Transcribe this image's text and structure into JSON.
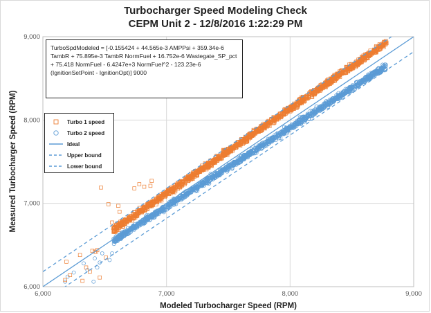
{
  "chart_data": {
    "type": "scatter",
    "title_line1": "Turbocharger Speed Modeling Check",
    "title_line2": "CEPM Unit 2 - 12/8/2016 1:22:29 PM",
    "xlabel": "Modeled Turbocharger Speed (RPM)",
    "ylabel": "Measured Turbocharger Speed (RPM)",
    "xlim": [
      6000,
      9000
    ],
    "ylim": [
      6000,
      9000
    ],
    "x_ticks": [
      "6,000",
      "7,000",
      "8,000",
      "9,000"
    ],
    "y_ticks": [
      "6,000",
      "7,000",
      "8,000",
      "9,000"
    ],
    "grid": true,
    "equation_text": "TurboSpdModeled = [-0.155424 + 44.565e-3 AMPPsi + 359.34e-6 TambR + 75.895e-3 TambR NormFuel + 16.752e-6 Wastegate_SP_pct + 75.418 NormFuel - 6.4247e+3 NormFuel^2 - 123.23e-6 (IgnitionSetPoint - IgnitionOpt)] 9000",
    "legend_placement": "left",
    "series": [
      {
        "name": "Turbo 1 speed",
        "marker": "square",
        "color": "#ED7D31",
        "band": {
          "x_start": 6570,
          "x_end": 8780,
          "offset_start": 110,
          "offset_end": 150
        },
        "outliers": [
          [
            6190,
            6300
          ],
          [
            6220,
            6140
          ],
          [
            6300,
            6380
          ],
          [
            6350,
            6230
          ],
          [
            6400,
            6430
          ],
          [
            6420,
            6420
          ],
          [
            6440,
            6440
          ],
          [
            6430,
            6420
          ],
          [
            6180,
            6080
          ],
          [
            6320,
            6070
          ],
          [
            6380,
            6180
          ],
          [
            6460,
            6110
          ],
          [
            6510,
            6350
          ],
          [
            6470,
            7190
          ],
          [
            6530,
            6990
          ],
          [
            6560,
            6770
          ],
          [
            6610,
            6970
          ],
          [
            6740,
            7180
          ],
          [
            6870,
            7210
          ],
          [
            6780,
            7230
          ],
          [
            6880,
            7270
          ],
          [
            6620,
            6900
          ],
          [
            6820,
            7200
          ]
        ]
      },
      {
        "name": "Turbo 2 speed",
        "marker": "circle",
        "color": "#5B9BD5",
        "band": {
          "x_start": 6570,
          "x_end": 8780,
          "offset_start": -20,
          "offset_end": -130
        },
        "outliers": [
          [
            6180,
            6060
          ],
          [
            6250,
            6170
          ],
          [
            6330,
            6280
          ],
          [
            6360,
            6200
          ],
          [
            6420,
            6340
          ],
          [
            6440,
            6230
          ],
          [
            6460,
            6290
          ],
          [
            6480,
            6400
          ],
          [
            6200,
            6120
          ],
          [
            6410,
            6060
          ],
          [
            6540,
            6320
          ],
          [
            6560,
            6400
          ]
        ]
      },
      {
        "name": "Ideal",
        "type": "line",
        "style": "solid",
        "color": "#5B9BD5",
        "points": [
          [
            6000,
            6000
          ],
          [
            9000,
            9000
          ]
        ]
      },
      {
        "name": "Upper bound",
        "type": "line",
        "style": "dashed",
        "color": "#5B9BD5",
        "points": [
          [
            6000,
            6180
          ],
          [
            9000,
            9180
          ]
        ]
      },
      {
        "name": "Lower bound",
        "type": "line",
        "style": "dashed",
        "color": "#5B9BD5",
        "points": [
          [
            6000,
            5820
          ],
          [
            9000,
            8820
          ]
        ]
      }
    ]
  }
}
